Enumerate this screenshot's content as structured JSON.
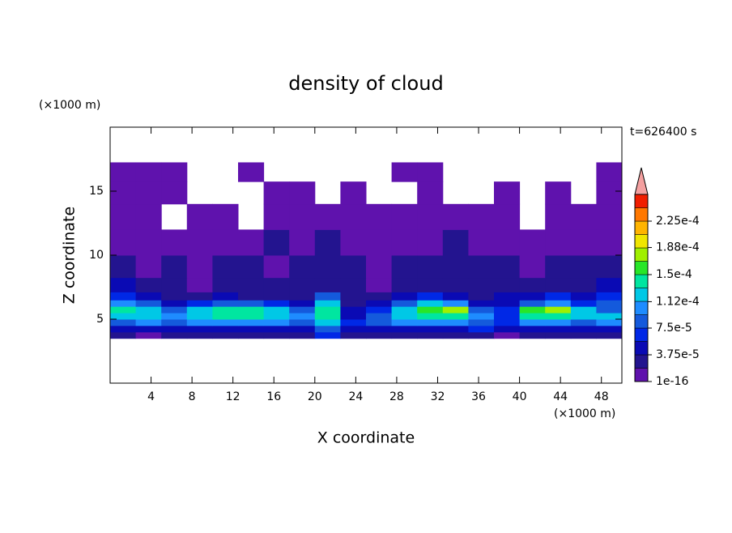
{
  "chart_data": {
    "type": "contour",
    "title": "density of cloud",
    "x_label": "X coordinate",
    "y_label": "Z coordinate",
    "x_unit": "(×1000 m)",
    "y_unit": "(×1000 m)",
    "annotation": "t=626400 s",
    "xlim": [
      0,
      50
    ],
    "ylim": [
      0,
      20
    ],
    "xticks": [
      4,
      8,
      12,
      16,
      20,
      24,
      28,
      32,
      36,
      40,
      44,
      48
    ],
    "yticks": [
      5,
      10,
      15
    ],
    "levels": [
      1e-16,
      1.875e-05,
      3.75e-05,
      5.625e-05,
      7.5e-05,
      9.375e-05,
      0.0001125,
      0.00013125,
      0.00015,
      0.00016875,
      0.0001875,
      0.00020625,
      0.000225,
      0.00024375
    ],
    "colors": [
      "#5f12ad",
      "#23148f",
      "#0a0ab4",
      "#0028e6",
      "#145adc",
      "#1e8cff",
      "#00c8e6",
      "#00e6a0",
      "#28e628",
      "#a0f000",
      "#f0e600",
      "#ffb400",
      "#ff7800",
      "#f01e00"
    ],
    "extend_color": "#f4a0a0",
    "colorbar_ticks": [
      1e-16,
      {
        "value": 3.75e-05,
        "label": "3.75e-5"
      },
      {
        "value": 7.5e-05,
        "label": "7.5e-5"
      },
      {
        "value": 0.000112,
        "label": "1.12e-4"
      },
      {
        "value": 0.00015,
        "label": "1.5e-4"
      },
      {
        "value": 0.000188,
        "label": "1.88e-4"
      },
      {
        "value": 0.000225,
        "label": "2.25e-4"
      }
    ],
    "field": {
      "x": [
        1.25,
        3.75,
        6.25,
        8.75,
        11.25,
        13.75,
        16.25,
        18.75,
        21.25,
        23.75,
        26.25,
        28.75,
        31.25,
        33.75,
        36.25,
        38.75,
        41.25,
        43.75,
        46.25,
        48.75
      ],
      "z": [
        3.75,
        4.25,
        4.75,
        5.25,
        5.75,
        6.25,
        6.75,
        7.5,
        9,
        11,
        13,
        15,
        16.5
      ],
      "values": [
        [
          2.5e-05,
          1e-05,
          2.5e-05,
          2.5e-05,
          2.5e-05,
          2.5e-05,
          2.5e-05,
          2.5e-05,
          6.5e-05,
          2.5e-05,
          2.5e-05,
          2.5e-05,
          2.5e-05,
          2.5e-05,
          2.5e-05,
          1e-05,
          2.5e-05,
          2.5e-05,
          2.5e-05,
          2.5e-05
        ],
        [
          4.5e-05,
          4.5e-05,
          4.5e-05,
          4.5e-05,
          4.5e-05,
          4.5e-05,
          4.5e-05,
          4.5e-05,
          8.5e-05,
          4.5e-05,
          4.5e-05,
          4.5e-05,
          4.5e-05,
          4.5e-05,
          6.5e-05,
          4.5e-05,
          4.5e-05,
          4.5e-05,
          4.5e-05,
          4.5e-05
        ],
        [
          8.5e-05,
          0.000102,
          8.5e-05,
          0.000102,
          0.000102,
          0.000102,
          0.000102,
          8.5e-05,
          0.00012,
          6.5e-05,
          8.5e-05,
          0.000102,
          0.000102,
          0.000102,
          8.5e-05,
          6.5e-05,
          0.000102,
          0.000102,
          8.5e-05,
          0.000102
        ],
        [
          0.00012,
          0.00012,
          0.000102,
          0.00012,
          0.00014,
          0.00014,
          0.00012,
          0.000102,
          0.00014,
          4.5e-05,
          8.5e-05,
          0.00012,
          0.00014,
          0.00014,
          0.000102,
          6.5e-05,
          0.00014,
          0.00014,
          0.00012,
          0.00012
        ],
        [
          0.00014,
          0.00012,
          8.5e-05,
          0.00012,
          0.00014,
          0.00014,
          0.00012,
          8.5e-05,
          0.00014,
          4.5e-05,
          6.5e-05,
          0.00012,
          0.00016,
          0.000175,
          8.5e-05,
          6.5e-05,
          0.00016,
          0.000175,
          0.00012,
          8.5e-05
        ],
        [
          0.000102,
          8.5e-05,
          4.5e-05,
          6.5e-05,
          8.5e-05,
          8.5e-05,
          6.5e-05,
          4.5e-05,
          0.00012,
          2.5e-05,
          4.5e-05,
          8.5e-05,
          0.00012,
          0.000102,
          4.5e-05,
          4.5e-05,
          8.5e-05,
          0.000102,
          6.5e-05,
          8.5e-05
        ],
        [
          6.5e-05,
          4.5e-05,
          2.5e-05,
          2.5e-05,
          4.5e-05,
          2.5e-05,
          2.5e-05,
          2.5e-05,
          8.5e-05,
          2.5e-05,
          2.5e-05,
          4.5e-05,
          6.5e-05,
          4.5e-05,
          2.5e-05,
          4.5e-05,
          4.5e-05,
          6.5e-05,
          4.5e-05,
          6.5e-05
        ],
        [
          4.5e-05,
          2.5e-05,
          2.5e-05,
          1e-05,
          2.5e-05,
          2.5e-05,
          2.5e-05,
          2.5e-05,
          2.5e-05,
          2.5e-05,
          1e-05,
          2.5e-05,
          2.5e-05,
          2.5e-05,
          2.5e-05,
          2.5e-05,
          2.5e-05,
          2.5e-05,
          2.5e-05,
          4.5e-05
        ],
        [
          2.5e-05,
          1e-05,
          2.5e-05,
          1e-05,
          2.5e-05,
          2.5e-05,
          1e-05,
          2.5e-05,
          2.5e-05,
          2.5e-05,
          1e-05,
          2.5e-05,
          2.5e-05,
          2.5e-05,
          2.5e-05,
          2.5e-05,
          1e-05,
          2.5e-05,
          2.5e-05,
          2.5e-05
        ],
        [
          1e-05,
          1e-05,
          1e-05,
          1e-05,
          1e-05,
          1e-05,
          2.5e-05,
          1e-05,
          2.5e-05,
          1e-05,
          1e-05,
          1e-05,
          1e-05,
          2.5e-05,
          1e-05,
          1e-05,
          1e-05,
          1e-05,
          1e-05,
          1e-05
        ],
        [
          1e-05,
          1e-05,
          null,
          1e-05,
          1e-05,
          null,
          1e-05,
          1e-05,
          1e-05,
          1e-05,
          1e-05,
          1e-05,
          1e-05,
          1e-05,
          1e-05,
          1e-05,
          null,
          1e-05,
          1e-05,
          1e-05
        ],
        [
          1e-05,
          1e-05,
          1e-05,
          null,
          null,
          null,
          1e-05,
          1e-05,
          null,
          1e-05,
          null,
          null,
          1e-05,
          null,
          null,
          1e-05,
          null,
          1e-05,
          null,
          1e-05
        ],
        [
          1e-05,
          1e-05,
          1e-05,
          null,
          null,
          1e-05,
          null,
          null,
          null,
          null,
          null,
          1e-05,
          1e-05,
          null,
          null,
          null,
          null,
          null,
          null,
          1e-05
        ]
      ]
    }
  }
}
